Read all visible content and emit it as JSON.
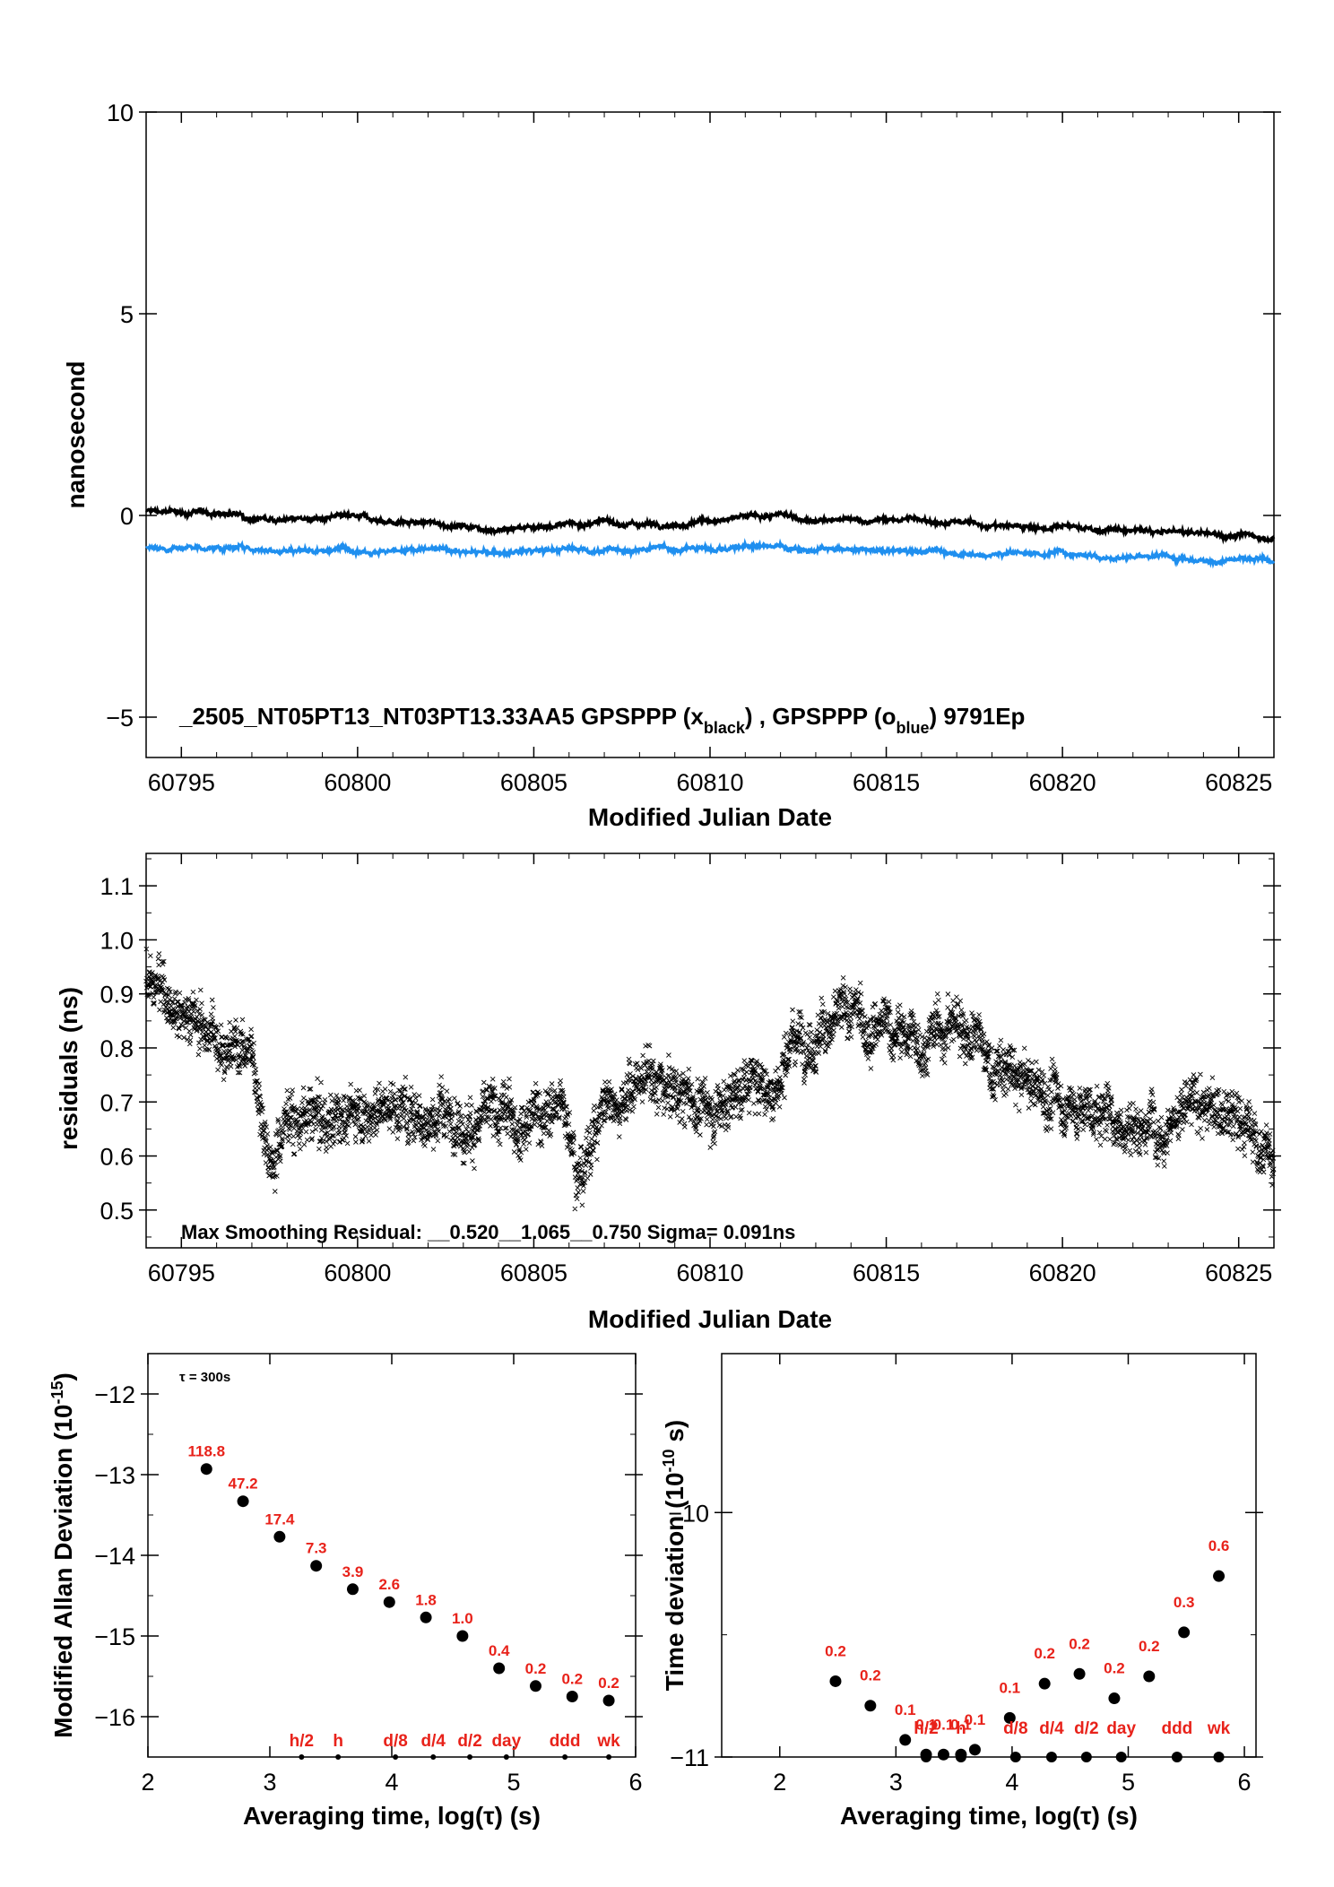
{
  "chart_data": [
    {
      "type": "line",
      "xlabel": "Modified Julian Date",
      "ylabel": "nanosecond",
      "xlim": [
        60794,
        60826
      ],
      "ylim": [
        -6,
        10
      ],
      "xticks": [
        60795,
        60800,
        60805,
        60810,
        60815,
        60820,
        60825
      ],
      "yticks": [
        -5,
        0,
        5,
        10
      ],
      "annotation": {
        "main": "_2505_NT05PT13_NT03PT13.33AA5     GPSPPP (x",
        "sub1": "black",
        "mid": ") ,  GPSPPP (o",
        "sub2": "blue",
        "end": ")  9791Ep"
      },
      "series": [
        {
          "name": "GPSPPP (x black)",
          "color": "#000000",
          "x": [
            60794,
            60796,
            60798,
            60800,
            60802,
            60804,
            60806,
            60808,
            60810,
            60812,
            60814,
            60816,
            60818,
            60820,
            60822,
            60824,
            60826
          ],
          "values": [
            0.1,
            0.05,
            -0.05,
            -0.1,
            -0.2,
            -0.3,
            -0.2,
            -0.2,
            -0.1,
            -0.05,
            -0.15,
            -0.1,
            -0.25,
            -0.3,
            -0.4,
            -0.45,
            -0.55
          ]
        },
        {
          "name": "GPSPPP (o blue)",
          "color": "#1f8fef",
          "x": [
            60794,
            60796,
            60798,
            60800,
            60802,
            60804,
            60806,
            60808,
            60810,
            60812,
            60814,
            60816,
            60818,
            60820,
            60822,
            60824,
            60826
          ],
          "values": [
            -0.8,
            -0.8,
            -0.85,
            -0.8,
            -0.85,
            -0.95,
            -0.85,
            -0.85,
            -0.8,
            -0.75,
            -0.9,
            -0.85,
            -0.95,
            -0.9,
            -1.0,
            -1.05,
            -1.15
          ]
        }
      ]
    },
    {
      "type": "scatter",
      "xlabel": "Modified Julian Date",
      "ylabel": "residuals (ns)",
      "xlim": [
        60794,
        60826
      ],
      "ylim": [
        0.43,
        1.16
      ],
      "xticks": [
        60795,
        60800,
        60805,
        60810,
        60815,
        60820,
        60825
      ],
      "yticks": [
        0.5,
        0.6,
        0.7,
        0.8,
        0.9,
        1.0,
        1.1
      ],
      "annotation": "Max Smoothing Residual: __0.520__1.065__0.750  Sigma= 0.091ns",
      "series": [
        {
          "name": "residuals",
          "color": "#000000",
          "x": [
            60794,
            60795,
            60796,
            60797,
            60797.5,
            60798,
            60799,
            60800,
            60801,
            60802,
            60803,
            60804,
            60805,
            60806,
            60806.3,
            60807,
            60808,
            60809,
            60810,
            60811,
            60812,
            60812.2,
            60813,
            60814,
            60815,
            60816,
            60817,
            60817.5,
            60818,
            60819,
            60820,
            60821,
            60822,
            60823,
            60824,
            60825,
            60826
          ],
          "values": [
            0.93,
            0.88,
            0.82,
            0.8,
            0.6,
            0.68,
            0.66,
            0.69,
            0.7,
            0.68,
            0.67,
            0.66,
            0.69,
            0.68,
            0.57,
            0.7,
            0.74,
            0.72,
            0.68,
            0.74,
            0.72,
            0.82,
            0.84,
            0.85,
            0.83,
            0.81,
            0.85,
            0.82,
            0.76,
            0.73,
            0.7,
            0.68,
            0.66,
            0.68,
            0.69,
            0.66,
            0.6
          ]
        }
      ]
    },
    {
      "type": "scatter",
      "xlabel": "Averaging time, log(τ) (s)",
      "ylabel": "Modified Allan Deviation (10⁻¹⁵)",
      "ylabel_parts": {
        "base": "Modified Allan Deviation (10",
        "sup": "-15",
        "end": ")"
      },
      "xlim": [
        2,
        6
      ],
      "ylim": [
        -16.5,
        -11.5
      ],
      "xticks": [
        2,
        3,
        4,
        5,
        6
      ],
      "yticks": [
        -16,
        -15,
        -14,
        -13,
        -12
      ],
      "note": "τ = 300s",
      "x": [
        2.48,
        2.78,
        3.08,
        3.38,
        3.68,
        3.98,
        4.28,
        4.58,
        4.88,
        5.18,
        5.48,
        5.78
      ],
      "values": [
        -12.93,
        -13.33,
        -13.77,
        -14.13,
        -14.42,
        -14.58,
        -14.77,
        -15.0,
        -15.4,
        -15.62,
        -15.75,
        -15.8
      ],
      "point_labels": [
        "118.8",
        "47.2",
        "17.4",
        "7.3",
        "3.9",
        "2.6",
        "1.8",
        "1.0",
        "0.4",
        "0.2",
        "0.2",
        "0.2"
      ],
      "period_ticks": [
        {
          "x": 3.26,
          "label": "h/2"
        },
        {
          "x": 3.56,
          "label": "h"
        },
        {
          "x": 4.03,
          "label": "d/8"
        },
        {
          "x": 4.34,
          "label": "d/4"
        },
        {
          "x": 4.64,
          "label": "d/2"
        },
        {
          "x": 4.94,
          "label": "day"
        },
        {
          "x": 5.42,
          "label": "ddd"
        },
        {
          "x": 5.78,
          "label": "wk"
        }
      ]
    },
    {
      "type": "scatter",
      "xlabel": "Averaging time, log(τ) (s)",
      "ylabel": "Time deviation (10⁻¹⁰ s)",
      "ylabel_parts": {
        "base": "Time deviation (10",
        "sup": "-10",
        "end": " s)"
      },
      "xlim": [
        1.5,
        6.1
      ],
      "ylim": [
        -11,
        -9.35
      ],
      "xticks": [
        2,
        3,
        4,
        5,
        6
      ],
      "yticks": [
        -11,
        -10
      ],
      "x": [
        2.48,
        2.78,
        3.08,
        3.26,
        3.41,
        3.56,
        3.68,
        3.98,
        4.28,
        4.58,
        4.88,
        5.18,
        5.48,
        5.78
      ],
      "values": [
        -10.69,
        -10.79,
        -10.93,
        -10.99,
        -10.99,
        -10.99,
        -10.97,
        -10.84,
        -10.7,
        -10.66,
        -10.76,
        -10.67,
        -10.49,
        -10.26
      ],
      "point_labels": [
        "0.2",
        "0.2",
        "0.1",
        "0.1",
        "0.1",
        "0.1",
        "0.1",
        "0.1",
        "0.2",
        "0.2",
        "0.2",
        "0.2",
        "0.3",
        "0.6"
      ],
      "period_ticks": [
        {
          "x": 3.26,
          "label": "h/2"
        },
        {
          "x": 3.56,
          "label": "h"
        },
        {
          "x": 4.03,
          "label": "d/8"
        },
        {
          "x": 4.34,
          "label": "d/4"
        },
        {
          "x": 4.64,
          "label": "d/2"
        },
        {
          "x": 4.94,
          "label": "day"
        },
        {
          "x": 5.42,
          "label": "ddd"
        },
        {
          "x": 5.78,
          "label": "wk"
        }
      ]
    }
  ]
}
